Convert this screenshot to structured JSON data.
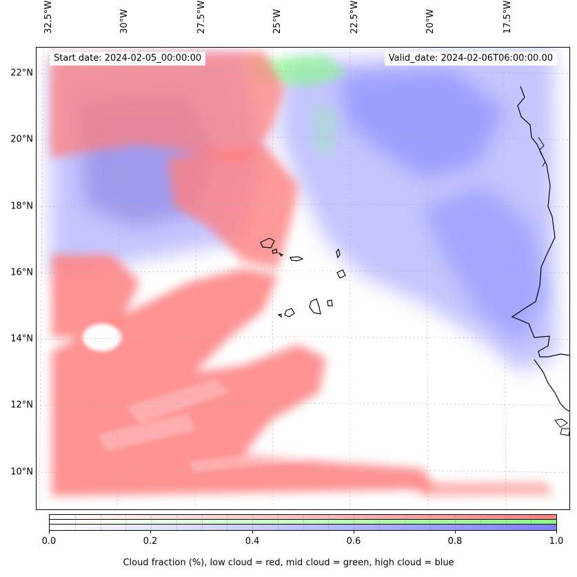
{
  "map": {
    "start_date": "Start date: 2024-02-05_00:00:00",
    "valid_date": "Valid_date: 2024-02-06T06:00:00.00",
    "longitude_labels": [
      "32.5°W",
      "30°W",
      "27.5°W",
      "25°W",
      "22.5°W",
      "20°W",
      "17.5°W"
    ],
    "latitude_labels": [
      "22°N",
      "20°N",
      "18°N",
      "16°N",
      "14°N",
      "12°N",
      "10°N"
    ],
    "colors": {
      "low_cloud": "#ff7f7f",
      "mid_cloud": "#7fff7f",
      "high_cloud": "#7f7fff",
      "coast": "#000000"
    }
  },
  "colorbar": {
    "ticks": [
      "0.0",
      "0.2",
      "0.4",
      "0.6",
      "0.8",
      "1.0"
    ],
    "caption": "Cloud fraction (%), low cloud = red, mid cloud = green, high cloud = blue"
  }
}
